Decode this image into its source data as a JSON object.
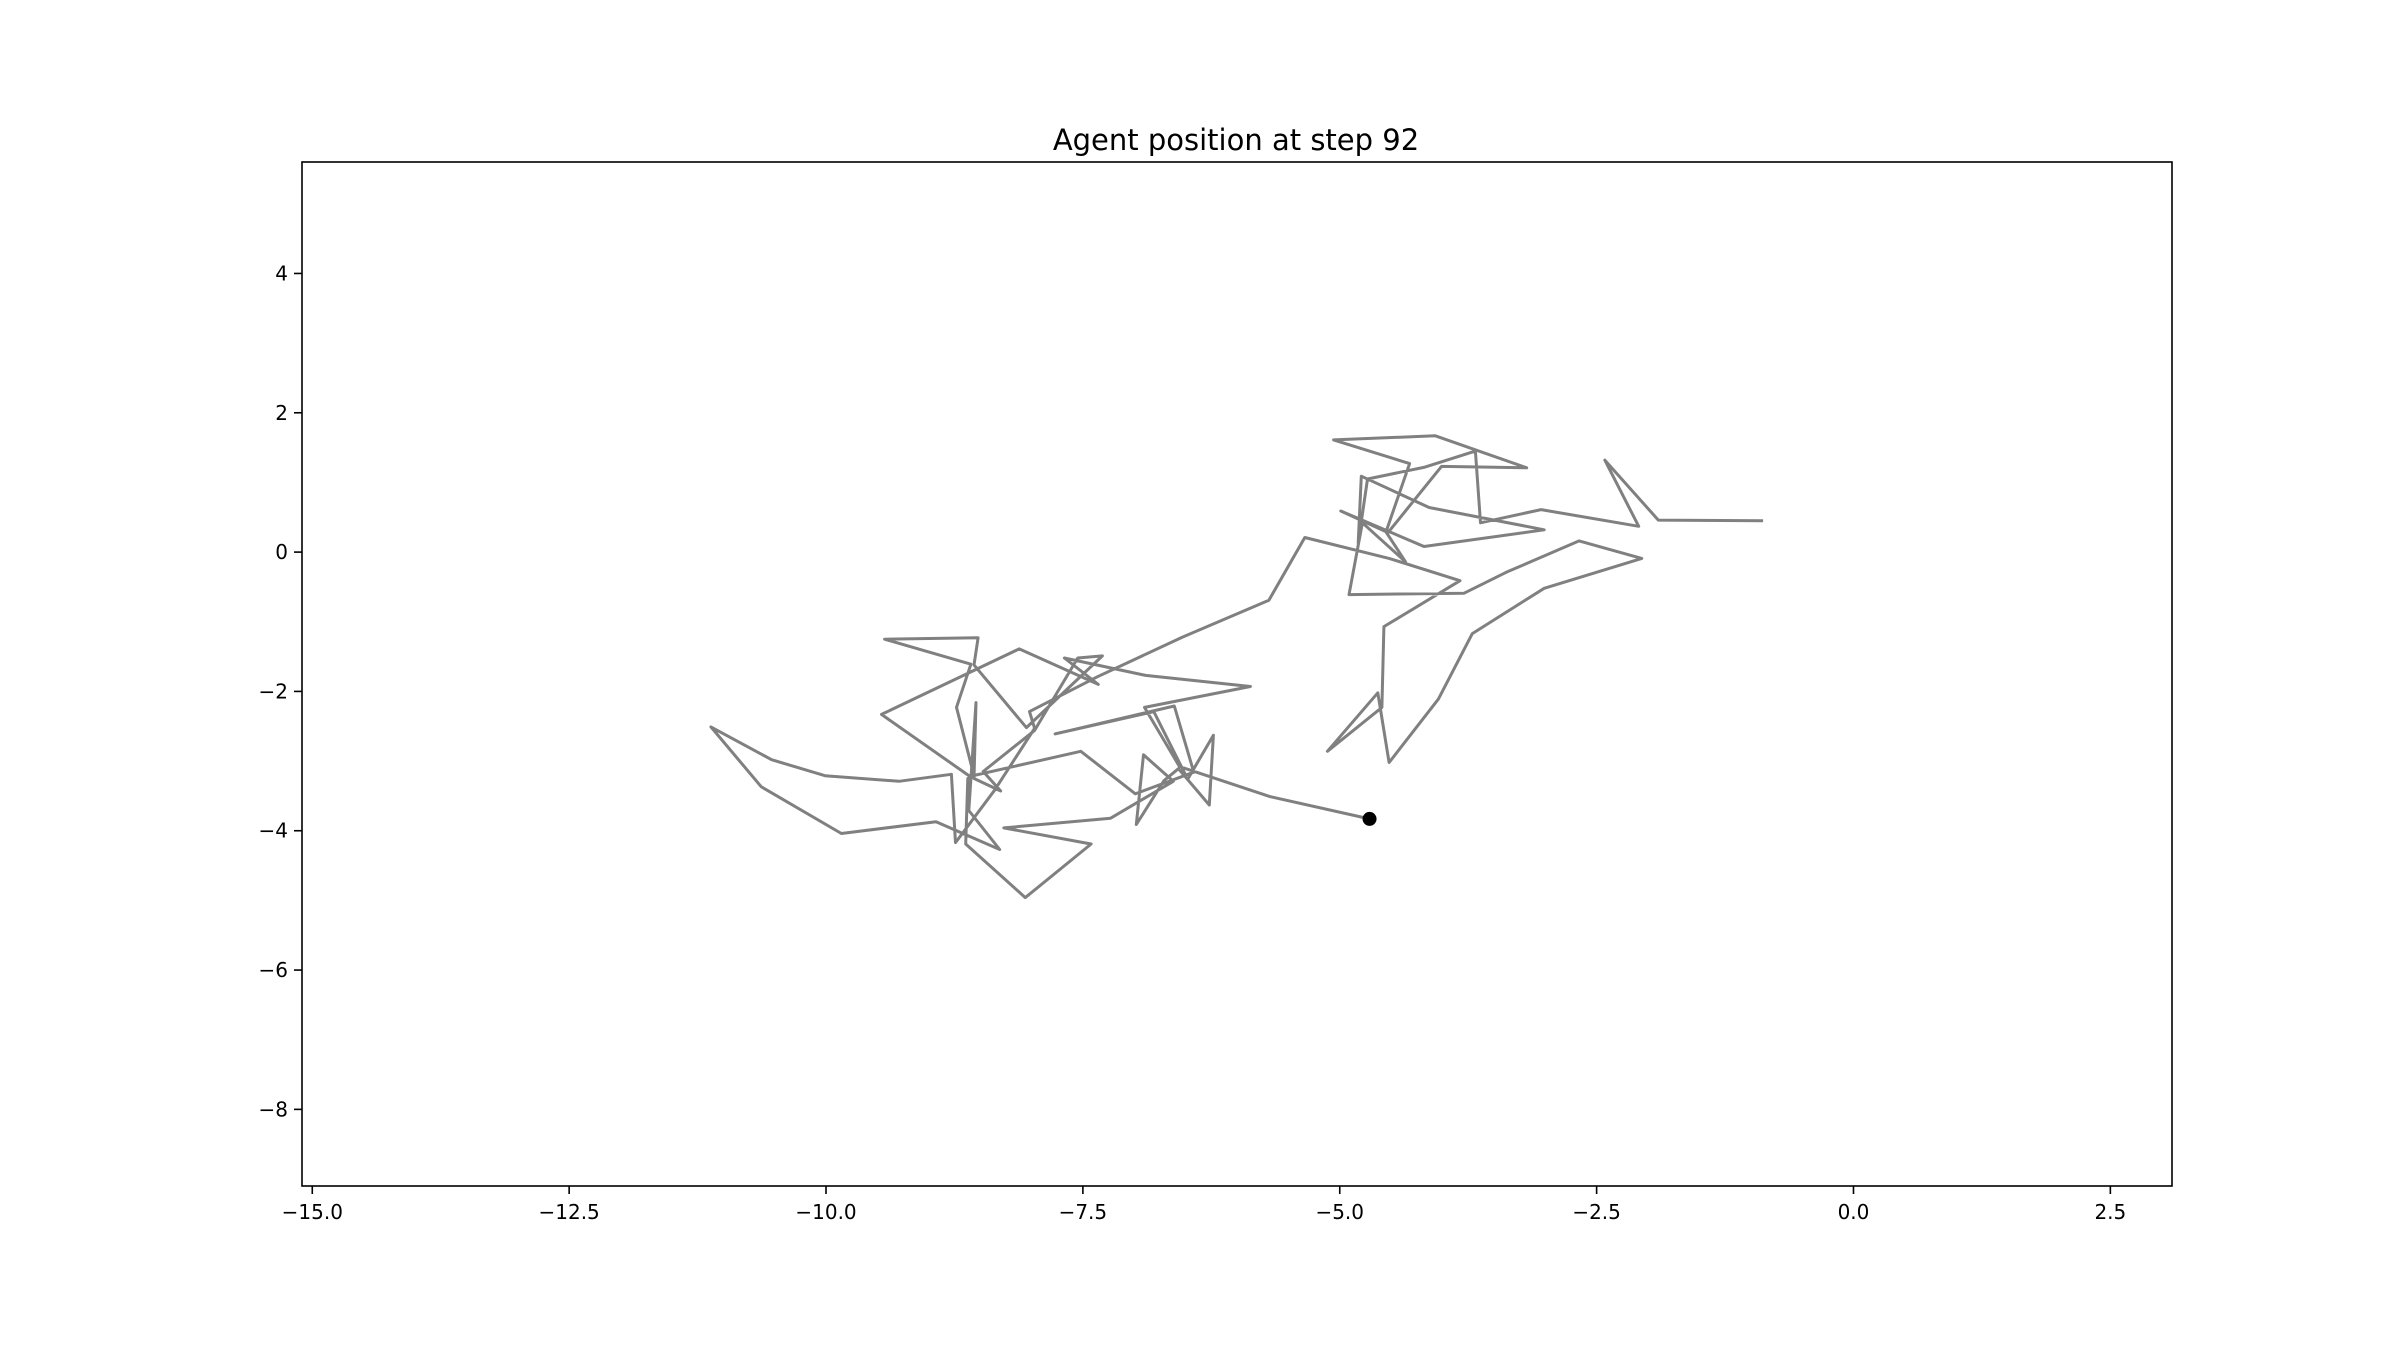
{
  "chart_data": {
    "type": "line",
    "title": "Agent position at step 92",
    "xlabel": "",
    "ylabel": "",
    "xlim": [
      -15.1,
      3.1
    ],
    "ylim": [
      -9.1,
      5.6
    ],
    "grid": false,
    "x_ticks": [
      -15.0,
      -12.5,
      -10.0,
      -7.5,
      -5.0,
      -2.5,
      0.0,
      2.5
    ],
    "x_tick_labels": [
      "−15.0",
      "−12.5",
      "−10.0",
      "−7.5",
      "−5.0",
      "−2.5",
      "0.0",
      "2.5"
    ],
    "y_ticks": [
      4,
      2,
      0,
      -2,
      -4,
      -6,
      -8
    ],
    "y_tick_labels": [
      "4",
      "2",
      "0",
      "−2",
      "−4",
      "−6",
      "−8"
    ],
    "series": [
      {
        "kind": "trajectory",
        "color": "#808080",
        "points": [
          [
            -0.88,
            0.45
          ],
          [
            -1.9,
            0.46
          ],
          [
            -2.42,
            1.32
          ],
          [
            -2.09,
            0.37
          ],
          [
            -3.04,
            0.61
          ],
          [
            -3.63,
            0.42
          ],
          [
            -3.68,
            1.45
          ],
          [
            -4.17,
            1.22
          ],
          [
            -4.73,
            1.05
          ],
          [
            -4.82,
            0.13
          ],
          [
            -4.79,
            1.09
          ],
          [
            -4.13,
            0.64
          ],
          [
            -3.01,
            0.32
          ],
          [
            -4.18,
            0.08
          ],
          [
            -4.99,
            0.59
          ],
          [
            -4.53,
            0.28
          ],
          [
            -4.01,
            1.23
          ],
          [
            -3.18,
            1.21
          ],
          [
            -4.07,
            1.67
          ],
          [
            -5.06,
            1.61
          ],
          [
            -4.32,
            1.27
          ],
          [
            -4.55,
            0.29
          ],
          [
            -4.36,
            -0.14
          ],
          [
            -4.78,
            0.42
          ],
          [
            -4.91,
            -0.61
          ],
          [
            -3.79,
            -0.59
          ],
          [
            -3.38,
            -0.29
          ],
          [
            -2.67,
            0.16
          ],
          [
            -2.06,
            -0.09
          ],
          [
            -3.01,
            -0.52
          ],
          [
            -3.71,
            -1.17
          ],
          [
            -4.04,
            -2.11
          ],
          [
            -4.52,
            -3.02
          ],
          [
            -4.63,
            -2.02
          ],
          [
            -5.12,
            -2.86
          ],
          [
            -4.59,
            -2.23
          ],
          [
            -4.57,
            -1.07
          ],
          [
            -3.83,
            -0.41
          ],
          [
            -4.52,
            -0.09
          ],
          [
            -5.34,
            0.21
          ],
          [
            -5.69,
            -0.69
          ],
          [
            -6.53,
            -1.22
          ],
          [
            -7.36,
            -1.79
          ],
          [
            -8.02,
            -2.29
          ],
          [
            -7.97,
            -2.53
          ],
          [
            -8.36,
            -3.42
          ],
          [
            -8.74,
            -4.17
          ],
          [
            -8.78,
            -3.19
          ],
          [
            -9.29,
            -3.29
          ],
          [
            -10.01,
            -3.21
          ],
          [
            -10.53,
            -2.98
          ],
          [
            -11.12,
            -2.51
          ],
          [
            -10.63,
            -3.37
          ],
          [
            -9.85,
            -4.04
          ],
          [
            -8.93,
            -3.87
          ],
          [
            -8.31,
            -4.27
          ],
          [
            -8.61,
            -3.71
          ],
          [
            -8.54,
            -2.16
          ],
          [
            -8.56,
            -3.25
          ],
          [
            -8.3,
            -3.43
          ],
          [
            -8.47,
            -3.15
          ],
          [
            -7.97,
            -2.56
          ],
          [
            -7.55,
            -1.52
          ],
          [
            -7.31,
            -1.49
          ],
          [
            -8.05,
            -2.52
          ],
          [
            -8.56,
            -1.62
          ],
          [
            -8.52,
            -1.23
          ],
          [
            -9.43,
            -1.25
          ],
          [
            -8.59,
            -1.61
          ],
          [
            -8.73,
            -2.23
          ],
          [
            -8.56,
            -3.21
          ],
          [
            -8.62,
            -3.25
          ],
          [
            -8.64,
            -4.19
          ],
          [
            -8.06,
            -4.96
          ],
          [
            -7.42,
            -4.19
          ],
          [
            -8.27,
            -3.96
          ],
          [
            -7.23,
            -3.82
          ],
          [
            -6.62,
            -3.29
          ],
          [
            -6.91,
            -2.91
          ],
          [
            -6.98,
            -3.91
          ],
          [
            -6.71,
            -3.28
          ],
          [
            -6.57,
            -3.11
          ],
          [
            -6.27,
            -3.63
          ],
          [
            -6.23,
            -2.63
          ],
          [
            -6.48,
            -3.26
          ],
          [
            -6.81,
            -2.29
          ],
          [
            -7.77,
            -2.61
          ],
          [
            -6.61,
            -2.21
          ],
          [
            -6.42,
            -3.16
          ],
          [
            -6.99,
            -3.47
          ],
          [
            -7.52,
            -2.86
          ],
          [
            -8.6,
            -3.22
          ],
          [
            -9.46,
            -2.33
          ],
          [
            -8.12,
            -1.39
          ],
          [
            -7.35,
            -1.9
          ],
          [
            -7.68,
            -1.52
          ],
          [
            -6.89,
            -1.77
          ],
          [
            -5.87,
            -1.93
          ],
          [
            -6.9,
            -2.23
          ],
          [
            -6.56,
            -3.08
          ],
          [
            -5.68,
            -3.51
          ],
          [
            -4.71,
            -3.83
          ]
        ]
      }
    ],
    "current_position": {
      "x": -4.71,
      "y": -3.83,
      "color": "#000000"
    }
  }
}
